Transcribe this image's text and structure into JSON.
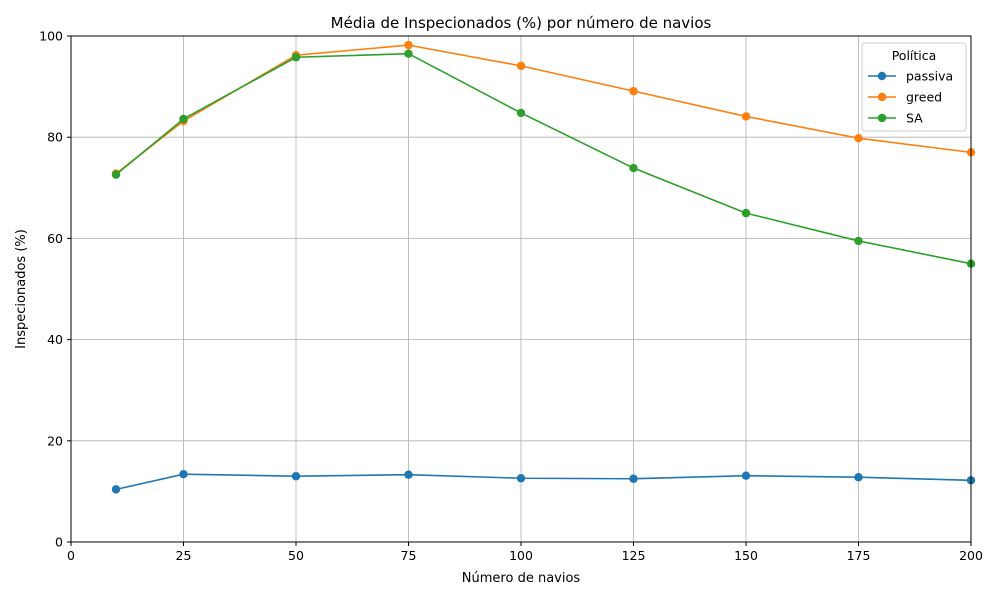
{
  "chart_data": {
    "type": "line",
    "title": "Média de Inspecionados (%) por número de navios",
    "xlabel": "Número de navios",
    "ylabel": "Inspecionados (%)",
    "xlim": [
      0,
      200
    ],
    "ylim": [
      0,
      100
    ],
    "xticks": [
      0,
      25,
      50,
      75,
      100,
      125,
      150,
      175,
      200
    ],
    "yticks": [
      0,
      20,
      40,
      60,
      80,
      100
    ],
    "grid": true,
    "legend": {
      "title": "Política",
      "placement": "top-right"
    },
    "x": [
      10,
      25,
      50,
      75,
      100,
      125,
      150,
      175,
      200
    ],
    "series": [
      {
        "name": "passiva",
        "color": "#1f77b4",
        "values": [
          10.4,
          13.4,
          13.0,
          13.3,
          12.6,
          12.5,
          13.1,
          12.8,
          12.2
        ]
      },
      {
        "name": "greed",
        "color": "#ff7f0e",
        "values": [
          72.8,
          83.2,
          96.2,
          98.2,
          94.1,
          89.1,
          84.1,
          79.8,
          77.0
        ]
      },
      {
        "name": "SA",
        "color": "#2ca02c",
        "values": [
          72.6,
          83.6,
          95.8,
          96.5,
          84.8,
          73.9,
          65.0,
          59.5,
          55.0
        ]
      }
    ]
  }
}
